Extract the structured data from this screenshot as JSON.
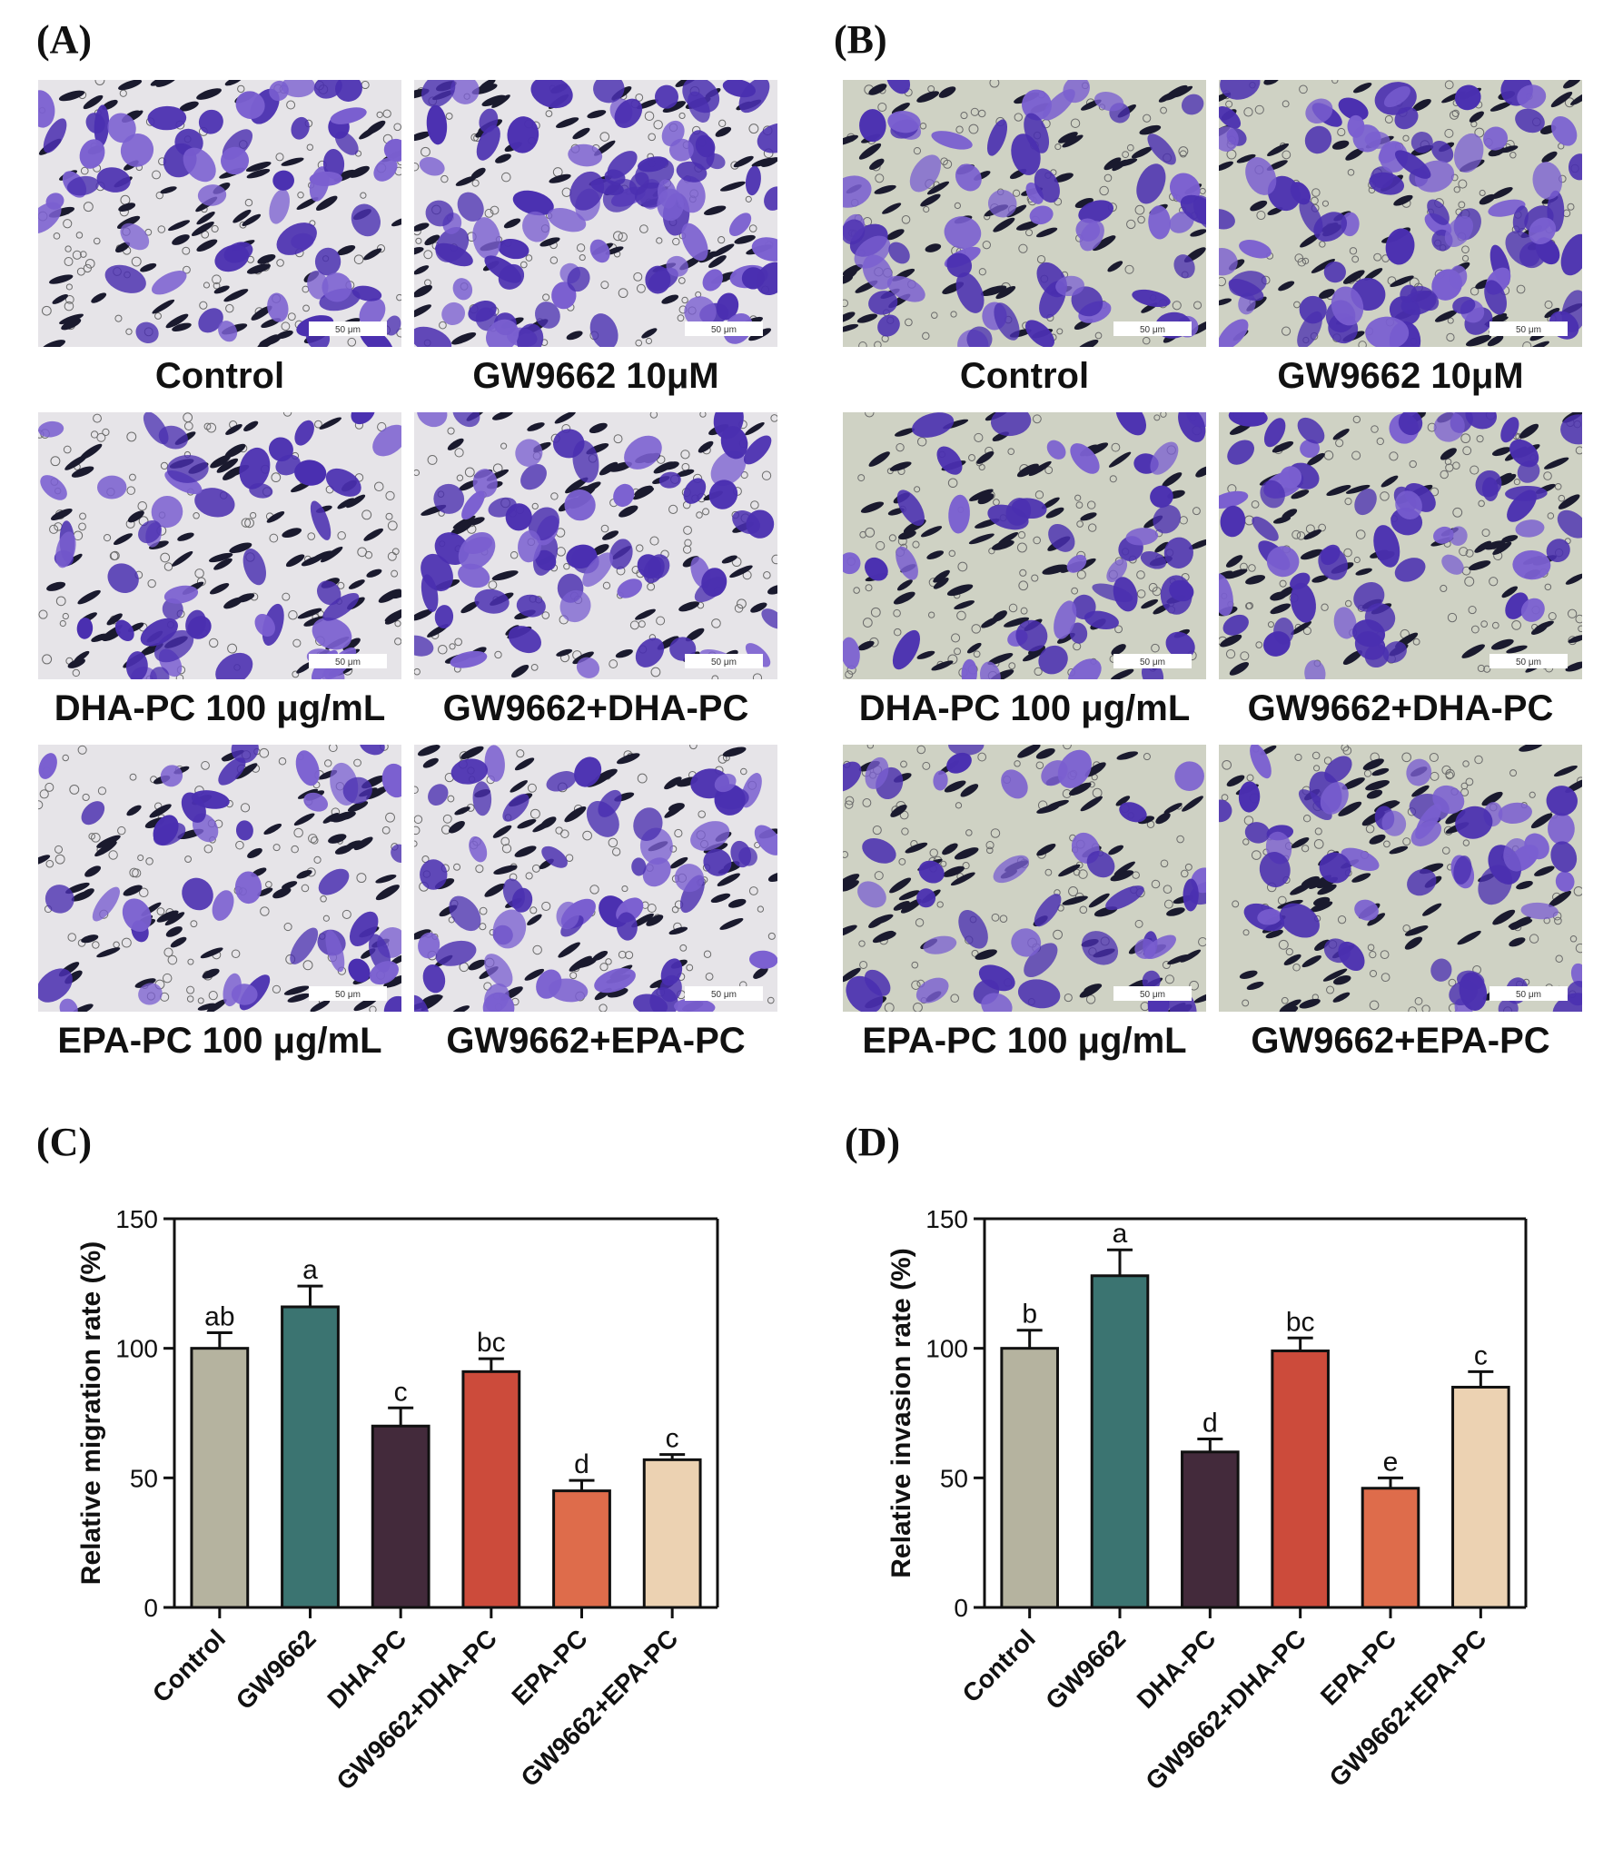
{
  "panels": {
    "A": {
      "letter": "(A)",
      "images": [
        {
          "caption": "Control",
          "scale_label": "50 μm",
          "density": 0.55
        },
        {
          "caption": "GW9662 10μM",
          "scale_label": "50 μm",
          "density": 0.9
        },
        {
          "caption": "DHA-PC 100 μg/mL",
          "scale_label": "50 μm",
          "density": 0.4
        },
        {
          "caption": "GW9662+DHA-PC",
          "scale_label": "50 μm",
          "density": 0.55
        },
        {
          "caption": "EPA-PC 100 μg/mL",
          "scale_label": "50 μm",
          "density": 0.3
        },
        {
          "caption": "GW9662+EPA-PC",
          "scale_label": "50 μm",
          "density": 0.5
        }
      ]
    },
    "B": {
      "letter": "(B)",
      "images": [
        {
          "caption": "Control",
          "scale_label": "50 μm",
          "density": 0.55
        },
        {
          "caption": "GW9662 10μM",
          "scale_label": "50 μm",
          "density": 0.9
        },
        {
          "caption": "DHA-PC 100 μg/mL",
          "scale_label": "50 μm",
          "density": 0.35
        },
        {
          "caption": "GW9662+DHA-PC",
          "scale_label": "50 μm",
          "density": 0.55
        },
        {
          "caption": "EPA-PC 100 μg/mL",
          "scale_label": "50 μm",
          "density": 0.3
        },
        {
          "caption": "GW9662+EPA-PC",
          "scale_label": "50 μm",
          "density": 0.45
        }
      ]
    },
    "C": {
      "letter": "(C)"
    },
    "D": {
      "letter": "(D)"
    }
  },
  "colors": {
    "stain": "#4a2fb0",
    "stain_light": "#7a5fd0",
    "pore": "#1a1a2e",
    "bg_A": "#e6e4e8",
    "bg_B": "#cfd2c4",
    "bars": [
      "#b5b39f",
      "#3b7471",
      "#432a3b",
      "#cc4b3b",
      "#de6c4b",
      "#ecd2b2"
    ],
    "bar_edge": "#111111"
  },
  "chart_data": [
    {
      "type": "bar",
      "panel": "C",
      "categories": [
        "Control",
        "GW9662",
        "DHA-PC",
        "GW9662+DHA-PC",
        "EPA-PC",
        "GW9662+EPA-PC"
      ],
      "values": [
        100,
        116,
        70,
        91,
        45,
        57
      ],
      "errors": [
        6,
        8,
        7,
        5,
        4,
        2
      ],
      "significance_letters": [
        "ab",
        "a",
        "c",
        "bc",
        "d",
        "c"
      ],
      "ylabel": "Relative migration rate (%)",
      "xlabel": "",
      "ylim": [
        0,
        150
      ],
      "yticks": [
        0,
        50,
        100,
        150
      ],
      "grid": false
    },
    {
      "type": "bar",
      "panel": "D",
      "categories": [
        "Control",
        "GW9662",
        "DHA-PC",
        "GW9662+DHA-PC",
        "EPA-PC",
        "GW9662+EPA-PC"
      ],
      "values": [
        100,
        128,
        60,
        99,
        46,
        85
      ],
      "errors": [
        7,
        10,
        5,
        5,
        4,
        6
      ],
      "significance_letters": [
        "b",
        "a",
        "d",
        "bc",
        "e",
        "c"
      ],
      "ylabel": "Relative invasion rate (%)",
      "xlabel": "",
      "ylim": [
        0,
        150
      ],
      "yticks": [
        0,
        50,
        100,
        150
      ],
      "grid": false
    }
  ]
}
